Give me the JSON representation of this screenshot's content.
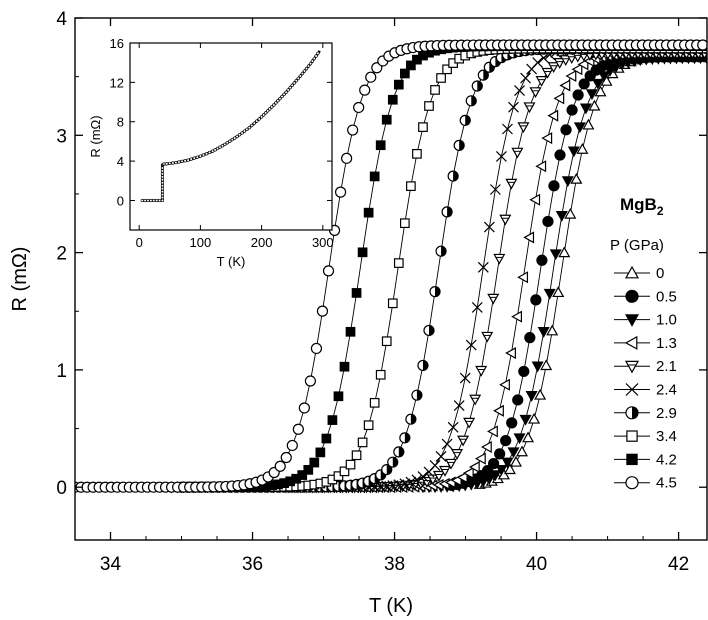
{
  "chart_data": [
    {
      "type": "line",
      "xlabel": "T (K)",
      "ylabel": "R (mΩ)",
      "xlim": [
        33.5,
        42.4
      ],
      "ylim": [
        -0.45,
        4
      ],
      "xticks": [
        34,
        36,
        38,
        40,
        42
      ],
      "xtick_labels": [
        "34",
        "36",
        "38",
        "40",
        "42"
      ],
      "yticks": [
        0,
        1,
        2,
        3,
        4
      ],
      "ytick_labels": [
        "0",
        "1",
        "2",
        "3",
        "4"
      ],
      "grid": false,
      "legend_position": "right",
      "annotation": {
        "text": "MgB",
        "subscript": "2"
      },
      "legend_title": "P (GPa)",
      "series": [
        {
          "name": "0",
          "marker": "triangle-up",
          "tc": 40.35,
          "width": 0.23,
          "rmax": 3.68,
          "x_start": 39.2,
          "x_end": 42.4,
          "step": 0.085
        },
        {
          "name": "0.5",
          "marker": "circle-filled",
          "tc": 40.05,
          "width": 0.23,
          "rmax": 3.67,
          "x_start": 38.8,
          "x_end": 42.4,
          "step": 0.085
        },
        {
          "name": "1.0",
          "marker": "triangle-down",
          "tc": 40.23,
          "width": 0.23,
          "rmax": 3.66,
          "x_start": 38.4,
          "x_end": 42.4,
          "step": 0.085
        },
        {
          "name": "1.3",
          "marker": "triangle-left",
          "tc": 39.83,
          "width": 0.23,
          "rmax": 3.7,
          "x_start": 34.8,
          "x_end": 42.4,
          "step": 0.085
        },
        {
          "name": "2.1",
          "marker": "triangle-half",
          "tc": 39.45,
          "width": 0.23,
          "rmax": 3.7,
          "x_start": 36.5,
          "x_end": 42.4,
          "step": 0.085
        },
        {
          "name": "2.4",
          "marker": "cross",
          "tc": 39.25,
          "width": 0.23,
          "rmax": 3.75,
          "x_start": 35.0,
          "x_end": 41.4,
          "step": 0.085
        },
        {
          "name": "2.9",
          "marker": "circle-half",
          "tc": 38.62,
          "width": 0.23,
          "rmax": 3.74,
          "x_start": 35.0,
          "x_end": 42.4,
          "step": 0.085
        },
        {
          "name": "3.4",
          "marker": "square-open",
          "tc": 38.05,
          "width": 0.23,
          "rmax": 3.74,
          "x_start": 35.0,
          "x_end": 42.4,
          "step": 0.085
        },
        {
          "name": "4.2",
          "marker": "square-filled",
          "tc": 37.52,
          "width": 0.23,
          "rmax": 3.76,
          "x_start": 35.0,
          "x_end": 42.4,
          "step": 0.085
        },
        {
          "name": "4.5",
          "marker": "circle-open",
          "tc": 37.08,
          "width": 0.23,
          "rmax": 3.77,
          "x_start": 33.5,
          "x_end": 42.4,
          "step": 0.085
        }
      ]
    },
    {
      "type": "line",
      "position": "inset-top-left",
      "xlabel": "T (K)",
      "ylabel": "R (mΩ)",
      "xlim": [
        -15,
        315
      ],
      "ylim": [
        -3,
        16
      ],
      "xticks": [
        0,
        100,
        200,
        300
      ],
      "xtick_labels": [
        "0",
        "100",
        "200",
        "300"
      ],
      "yticks": [
        0,
        4,
        8,
        12,
        16
      ],
      "ytick_labels": [
        "0",
        "4",
        "8",
        "12",
        "16"
      ],
      "series": [
        {
          "name": "",
          "x": [
            5,
            38,
            38,
            40,
            45,
            60,
            80,
            100,
            120,
            140,
            160,
            180,
            200,
            220,
            240,
            260,
            280,
            295
          ],
          "y": [
            0,
            0,
            3.6,
            3.7,
            3.72,
            3.85,
            4.1,
            4.5,
            5.0,
            5.7,
            6.5,
            7.4,
            8.5,
            9.7,
            11.0,
            12.4,
            13.9,
            15.2
          ]
        }
      ]
    }
  ]
}
